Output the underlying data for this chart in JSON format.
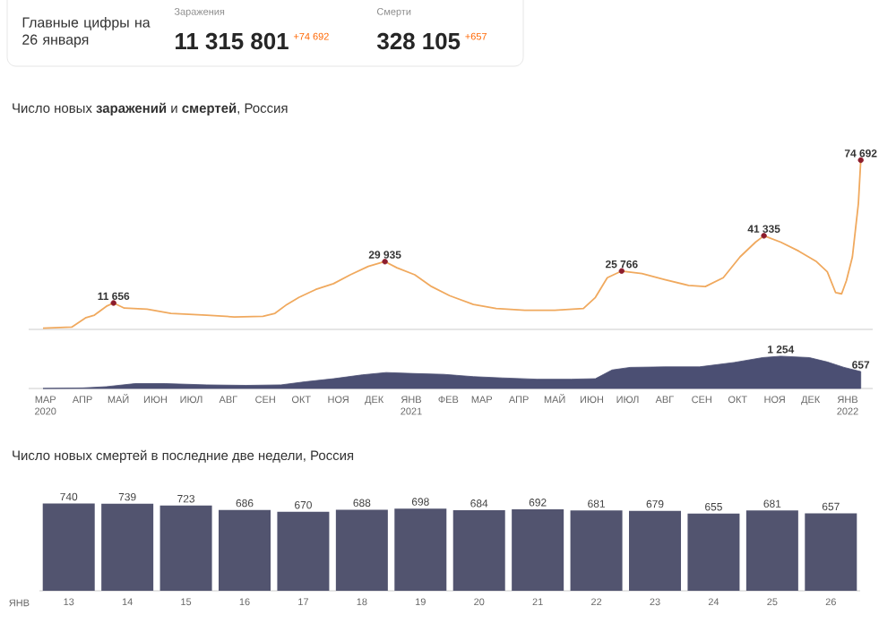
{
  "chart_data": [
    {
      "type": "other",
      "title": "Главные цифры на 26 января",
      "annotations": [
        "Заражения",
        "11 315 801",
        "+74 692",
        "Смерти",
        "328 105",
        "+657"
      ]
    },
    {
      "type": "line",
      "title": "Число новых **заражений** и **смертей**, Россия",
      "xlim": [
        "2020-03-01",
        "2022-02-05"
      ],
      "tick_labels": false,
      "series": [
        {
          "type": "line",
          "color": "#f0a95e",
          "x": [
            "2020-03-13",
            "2020-04-06",
            "2020-04-18",
            "2020-04-25",
            "2020-05-05",
            "2020-05-11",
            "2020-05-20",
            "2020-06-08",
            "2020-06-28",
            "2020-07-28",
            "2020-08-20",
            "2020-09-13",
            "2020-09-23",
            "2020-10-03",
            "2020-10-13",
            "2020-10-27",
            "2020-11-11",
            "2020-11-25",
            "2020-12-10",
            "2020-12-24",
            "2021-01-03",
            "2021-01-18",
            "2021-02-01",
            "2021-02-16",
            "2021-03-08",
            "2021-03-27",
            "2021-04-20",
            "2021-05-15",
            "2021-06-08",
            "2021-06-18",
            "2021-06-28",
            "2021-07-10",
            "2021-07-27",
            "2021-08-15",
            "2021-09-04",
            "2021-09-18",
            "2021-10-03",
            "2021-10-17",
            "2021-10-30",
            "2021-11-06",
            "2021-11-20",
            "2021-12-05",
            "2021-12-20",
            "2021-12-29",
            "2022-01-05",
            "2022-01-10",
            "2022-01-14",
            "2022-01-19",
            "2022-01-24",
            "2022-01-26"
          ],
          "values": [
            500,
            1000,
            5200,
            6300,
            10200,
            11656,
            9400,
            8900,
            7100,
            6300,
            5500,
            5800,
            7100,
            11000,
            14100,
            17600,
            20200,
            24100,
            27800,
            29935,
            27200,
            24100,
            18900,
            14900,
            11000,
            9200,
            8400,
            8400,
            9200,
            14100,
            22800,
            25766,
            24600,
            22000,
            19400,
            18900,
            22800,
            32000,
            38500,
            41335,
            38500,
            34600,
            29900,
            25400,
            16200,
            15700,
            21500,
            32000,
            55500,
            74692
          ]
        },
        {
          "type": "scatter",
          "color": "#8c1c2c",
          "marker": "circle",
          "x": [
            "2020-05-11",
            "2020-12-24",
            "2021-07-10",
            "2021-11-06",
            "2022-01-26"
          ],
          "values": [
            11656,
            29935,
            25766,
            41335,
            74692
          ],
          "value_labels": [
            "11 656",
            "29 935",
            "25 766",
            "41 335",
            "74 692"
          ]
        }
      ]
    },
    {
      "type": "area",
      "xlim": [
        "2020-03-01",
        "2022-02-05"
      ],
      "tick_labels": "x",
      "color": "#4b4f73",
      "xticks": [
        {
          "value": "2020-03-15",
          "label": "МАР 2020"
        },
        {
          "value": "2020-04-15",
          "label": "АПР"
        },
        {
          "value": "2020-05-15",
          "label": "МАЙ"
        },
        {
          "value": "2020-06-15",
          "label": "ИЮН"
        },
        {
          "value": "2020-07-15",
          "label": "ИЮЛ"
        },
        {
          "value": "2020-08-15",
          "label": "АВГ"
        },
        {
          "value": "2020-09-15",
          "label": "СЕН"
        },
        {
          "value": "2020-10-15",
          "label": "ОКТ"
        },
        {
          "value": "2020-11-15",
          "label": "НОЯ"
        },
        {
          "value": "2020-12-15",
          "label": "ДЕК"
        },
        {
          "value": "2021-01-15",
          "label": "ЯНВ 2021"
        },
        {
          "value": "2021-02-15",
          "label": "ФЕВ"
        },
        {
          "value": "2021-03-15",
          "label": "МАР"
        },
        {
          "value": "2021-04-15",
          "label": "АПР"
        },
        {
          "value": "2021-05-15",
          "label": "МАЙ"
        },
        {
          "value": "2021-06-15",
          "label": "ИЮН"
        },
        {
          "value": "2021-07-15",
          "label": "ИЮЛ"
        },
        {
          "value": "2021-08-15",
          "label": "АВГ"
        },
        {
          "value": "2021-09-15",
          "label": "СЕН"
        },
        {
          "value": "2021-10-15",
          "label": "ОКТ"
        },
        {
          "value": "2021-11-15",
          "label": "НОЯ"
        },
        {
          "value": "2021-12-15",
          "label": "ДЕК"
        },
        {
          "value": "2022-01-15",
          "label": "ЯНВ 2022"
        }
      ],
      "x": [
        "2020-03-13",
        "2020-04-15",
        "2020-05-05",
        "2020-05-29",
        "2020-06-23",
        "2020-07-28",
        "2020-08-30",
        "2020-09-28",
        "2020-10-18",
        "2020-11-11",
        "2020-12-05",
        "2020-12-25",
        "2021-01-18",
        "2021-02-11",
        "2021-03-08",
        "2021-04-01",
        "2021-04-30",
        "2021-05-29",
        "2021-06-18",
        "2021-07-02",
        "2021-07-17",
        "2021-08-15",
        "2021-09-13",
        "2021-10-12",
        "2021-11-05",
        "2021-11-20",
        "2021-12-14",
        "2021-12-29",
        "2022-01-12",
        "2022-01-26"
      ],
      "values": [
        0,
        20,
        70,
        190,
        190,
        140,
        120,
        140,
        260,
        380,
        530,
        620,
        580,
        550,
        460,
        410,
        360,
        360,
        380,
        720,
        820,
        840,
        840,
        1010,
        1200,
        1254,
        1200,
        1030,
        820,
        657
      ],
      "value_labels": [
        null,
        null,
        null,
        null,
        null,
        null,
        null,
        null,
        null,
        null,
        null,
        null,
        null,
        null,
        null,
        null,
        null,
        null,
        null,
        null,
        null,
        null,
        null,
        null,
        null,
        "1 254",
        null,
        null,
        null,
        "657"
      ]
    },
    {
      "type": "bar",
      "title": "Число новых смертей в последние две недели, Россия",
      "xlabel": "ЯНВ",
      "categories": [
        "13",
        "14",
        "15",
        "16",
        "17",
        "18",
        "19",
        "20",
        "21",
        "22",
        "23",
        "24",
        "25",
        "26"
      ],
      "values": [
        740,
        739,
        723,
        686,
        670,
        688,
        698,
        684,
        692,
        681,
        679,
        655,
        681,
        657
      ],
      "color": "#52546f",
      "tick_labels": "x",
      "data_labels": true
    }
  ]
}
